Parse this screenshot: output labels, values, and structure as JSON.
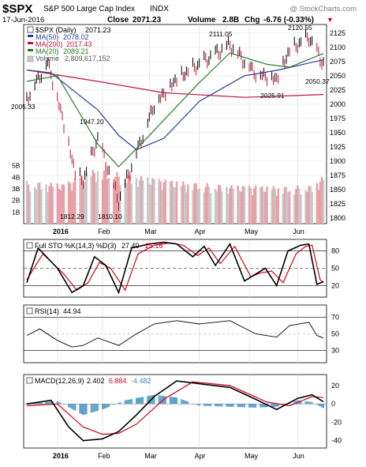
{
  "header": {
    "symbol": "$SPX",
    "name": "S&P 500 Large Cap Index",
    "exchange": "INDX",
    "watermark": "@ StockCharts.com",
    "date": "17-Jun-2016",
    "close_label": "Close",
    "close": "2071.23",
    "volume_label": "Volume",
    "volume": "2.8B",
    "chg_label": "Chg",
    "chg": "-6.76 (-0.33%)",
    "chg_arrow": "▼"
  },
  "colors": {
    "price": "#000000",
    "ma50": "#2a3aa0",
    "ma200": "#c0143c",
    "ma20": "#2a7a2a",
    "volume_up": "#c8c8c8",
    "volume_down": "#e8a0a8",
    "sto_k": "#000000",
    "sto_d": "#d0021b",
    "rsi": "#000000",
    "macd": "#000000",
    "signal": "#d0021b",
    "histogram": "#5aa0c8",
    "chg_arrow": "#d0021b"
  },
  "chart_data": [
    {
      "type": "line",
      "panel": "price",
      "subtype": "ohlc-bars",
      "legend": {
        "items": [
          {
            "id": "price",
            "label": "$SPX (Daily)",
            "value": "2071.23"
          },
          {
            "id": "ma50",
            "label": "MA(50)",
            "value": "2078.02"
          },
          {
            "id": "ma200",
            "label": "MA(200)",
            "value": "2017.43"
          },
          {
            "id": "ma20",
            "label": "MA(20)",
            "value": "2089.21"
          },
          {
            "id": "volume",
            "label": "Volume",
            "value": "2,809,617,152"
          }
        ]
      },
      "ylim": [
        1790,
        2140
      ],
      "y_ticks": [
        1800,
        1825,
        1850,
        1875,
        1900,
        1925,
        1950,
        1975,
        2000,
        2025,
        2050,
        2075,
        2100,
        2125
      ],
      "volume_ticks": [
        "1B",
        "2B",
        "3B",
        "4B",
        "5B"
      ],
      "volume_tick_values": [
        1,
        2,
        3,
        4,
        5
      ],
      "x_labels": [
        "2016",
        "Feb",
        "Mar",
        "Apr",
        "May",
        "Jun"
      ],
      "x_label_dates": [
        "2016-01-04",
        "2016-02-01",
        "2016-03-01",
        "2016-04-01",
        "2016-05-02",
        "2016-06-01"
      ],
      "x_range": [
        "2015-12-16",
        "2016-06-17"
      ],
      "price_series": {
        "dates": [
          "2015-12-16",
          "2015-12-29",
          "2016-01-06",
          "2016-01-15",
          "2016-01-20",
          "2016-01-29",
          "2016-02-11",
          "2016-02-22",
          "2016-03-04",
          "2016-03-18",
          "2016-04-01",
          "2016-04-20",
          "2016-05-06",
          "2016-05-19",
          "2016-05-27",
          "2016-06-08",
          "2016-06-17"
        ],
        "values": [
          2010,
          2075,
          1990,
          1880,
          1865,
          1940,
          1830,
          1915,
          2000,
          2045,
          2070,
          2105,
          2055,
          2045,
          2095,
          2118,
          2071
        ]
      },
      "ma50_series": {
        "dates": [
          "2015-12-16",
          "2015-12-31",
          "2016-01-29",
          "2016-02-11",
          "2016-02-22",
          "2016-03-10",
          "2016-04-01",
          "2016-04-29",
          "2016-05-20",
          "2016-06-17"
        ],
        "values": [
          2060,
          2055,
          1990,
          1945,
          1920,
          1940,
          2005,
          2050,
          2060,
          2078
        ]
      },
      "ma200_series": {
        "dates": [
          "2015-12-16",
          "2016-01-29",
          "2016-03-10",
          "2016-04-29",
          "2016-06-17"
        ],
        "values": [
          2060,
          2040,
          2020,
          2012,
          2017
        ]
      },
      "ma20_series": {
        "dates": [
          "2015-12-16",
          "2016-01-04",
          "2016-01-29",
          "2016-02-11",
          "2016-03-01",
          "2016-03-31",
          "2016-04-20",
          "2016-05-13",
          "2016-05-27",
          "2016-06-17"
        ],
        "values": [
          2040,
          2050,
          1930,
          1890,
          1945,
          2035,
          2090,
          2070,
          2065,
          2089
        ]
      },
      "volume_series": {
        "dates": [
          "2015-12-16",
          "2016-01-08",
          "2016-01-29",
          "2016-02-12",
          "2016-03-18",
          "2016-04-20",
          "2016-05-20",
          "2016-06-10",
          "2016-06-17"
        ],
        "values": [
          3.2,
          3.0,
          4.2,
          3.8,
          3.2,
          2.9,
          2.8,
          2.9,
          3.6
        ]
      },
      "annotations": [
        {
          "text": "2005.33",
          "date": "2015-12-18",
          "value": 2005.33
        },
        {
          "text": "1947.20",
          "date": "2016-02-01",
          "value": 1947.2
        },
        {
          "text": "1812.29",
          "date": "2016-01-20",
          "value": 1812.29
        },
        {
          "text": "1810.10",
          "date": "2016-02-11",
          "value": 1810.1
        },
        {
          "text": "2111.05",
          "date": "2016-04-20",
          "value": 2111.05
        },
        {
          "text": "2025.91",
          "date": "2016-05-19",
          "value": 2025.91
        },
        {
          "text": "2120.55",
          "date": "2016-06-08",
          "value": 2120.55
        },
        {
          "text": "2050.37",
          "date": "2016-06-16",
          "value": 2050.37
        }
      ]
    },
    {
      "type": "line",
      "panel": "stochastic",
      "legend": {
        "label": "Full STO %K(14,3) %D(3)",
        "k_value": "27.40",
        "d_value": "25.16"
      },
      "ylim": [
        0,
        100
      ],
      "y_ticks": [
        20,
        50,
        80
      ],
      "reference_lines": [
        20,
        50,
        80
      ],
      "k_series": {
        "dates": [
          "2015-12-16",
          "2015-12-23",
          "2016-01-04",
          "2016-01-13",
          "2016-01-20",
          "2016-01-27",
          "2016-02-03",
          "2016-02-11",
          "2016-02-19",
          "2016-03-01",
          "2016-03-10",
          "2016-03-18",
          "2016-03-28",
          "2016-04-04",
          "2016-04-11",
          "2016-04-20",
          "2016-04-29",
          "2016-05-06",
          "2016-05-12",
          "2016-05-19",
          "2016-05-26",
          "2016-06-03",
          "2016-06-08",
          "2016-06-13",
          "2016-06-17"
        ],
        "values": [
          25,
          85,
          50,
          8,
          20,
          70,
          55,
          8,
          85,
          92,
          95,
          92,
          70,
          88,
          55,
          92,
          28,
          40,
          50,
          20,
          80,
          90,
          92,
          22,
          27
        ]
      },
      "d_series": {
        "dates": [
          "2015-12-16",
          "2015-12-26",
          "2016-01-08",
          "2016-01-16",
          "2016-01-23",
          "2016-01-30",
          "2016-02-06",
          "2016-02-15",
          "2016-02-23",
          "2016-03-04",
          "2016-03-14",
          "2016-03-22",
          "2016-03-31",
          "2016-04-07",
          "2016-04-14",
          "2016-04-23",
          "2016-05-03",
          "2016-05-09",
          "2016-05-16",
          "2016-05-23",
          "2016-05-31",
          "2016-06-06",
          "2016-06-10",
          "2016-06-15",
          "2016-06-17"
        ],
        "values": [
          30,
          75,
          40,
          12,
          25,
          60,
          50,
          12,
          75,
          90,
          94,
          90,
          72,
          85,
          58,
          88,
          35,
          42,
          45,
          25,
          75,
          88,
          90,
          30,
          25
        ]
      }
    },
    {
      "type": "line",
      "panel": "rsi",
      "legend": {
        "label": "RSI(14)",
        "value": "44.94"
      },
      "ylim": [
        15,
        85
      ],
      "y_ticks": [
        30,
        50,
        70
      ],
      "reference_lines": [
        30,
        70
      ],
      "series": {
        "dates": [
          "2015-12-16",
          "2015-12-24",
          "2016-01-04",
          "2016-01-13",
          "2016-01-20",
          "2016-01-29",
          "2016-02-11",
          "2016-02-22",
          "2016-03-04",
          "2016-03-18",
          "2016-04-01",
          "2016-04-20",
          "2016-05-06",
          "2016-05-19",
          "2016-05-27",
          "2016-06-08",
          "2016-06-13",
          "2016-06-17"
        ],
        "values": [
          48,
          56,
          42,
          34,
          36,
          45,
          36,
          50,
          62,
          66,
          62,
          66,
          50,
          46,
          60,
          64,
          48,
          45
        ]
      }
    },
    {
      "type": "line",
      "panel": "macd",
      "legend": {
        "label": "MACD(12,26,9)",
        "macd_value": "2.402",
        "signal_value": "6.884",
        "histogram_value": "-4.482"
      },
      "ylim": [
        -48,
        32
      ],
      "y_ticks": [
        -40,
        -20,
        0,
        20
      ],
      "reference_lines": [
        0
      ],
      "macd_series": {
        "dates": [
          "2015-12-16",
          "2015-12-31",
          "2016-01-11",
          "2016-01-20",
          "2016-02-01",
          "2016-02-11",
          "2016-02-22",
          "2016-03-04",
          "2016-03-18",
          "2016-04-01",
          "2016-04-20",
          "2016-05-06",
          "2016-05-19",
          "2016-06-01",
          "2016-06-10",
          "2016-06-17"
        ],
        "values": [
          0,
          4,
          -25,
          -40,
          -38,
          -30,
          -12,
          8,
          25,
          22,
          18,
          5,
          -6,
          6,
          10,
          2.4
        ]
      },
      "signal_series": {
        "dates": [
          "2015-12-16",
          "2016-01-04",
          "2016-01-20",
          "2016-02-01",
          "2016-02-11",
          "2016-02-22",
          "2016-03-10",
          "2016-03-28",
          "2016-04-20",
          "2016-05-13",
          "2016-05-27",
          "2016-06-10",
          "2016-06-17"
        ],
        "values": [
          -2,
          0,
          -25,
          -33,
          -32,
          -22,
          5,
          24,
          20,
          2,
          -2,
          8,
          6.9
        ]
      },
      "histogram_series": {
        "dates": [
          "2015-12-16",
          "2016-01-04",
          "2016-01-20",
          "2016-02-01",
          "2016-02-15",
          "2016-03-04",
          "2016-03-18",
          "2016-04-01",
          "2016-04-20",
          "2016-05-06",
          "2016-05-19",
          "2016-06-01",
          "2016-06-10",
          "2016-06-17"
        ],
        "values": [
          1,
          3,
          -12,
          -6,
          4,
          10,
          7,
          -2,
          -3,
          -4,
          -3,
          4,
          2,
          -4.5
        ]
      }
    }
  ]
}
